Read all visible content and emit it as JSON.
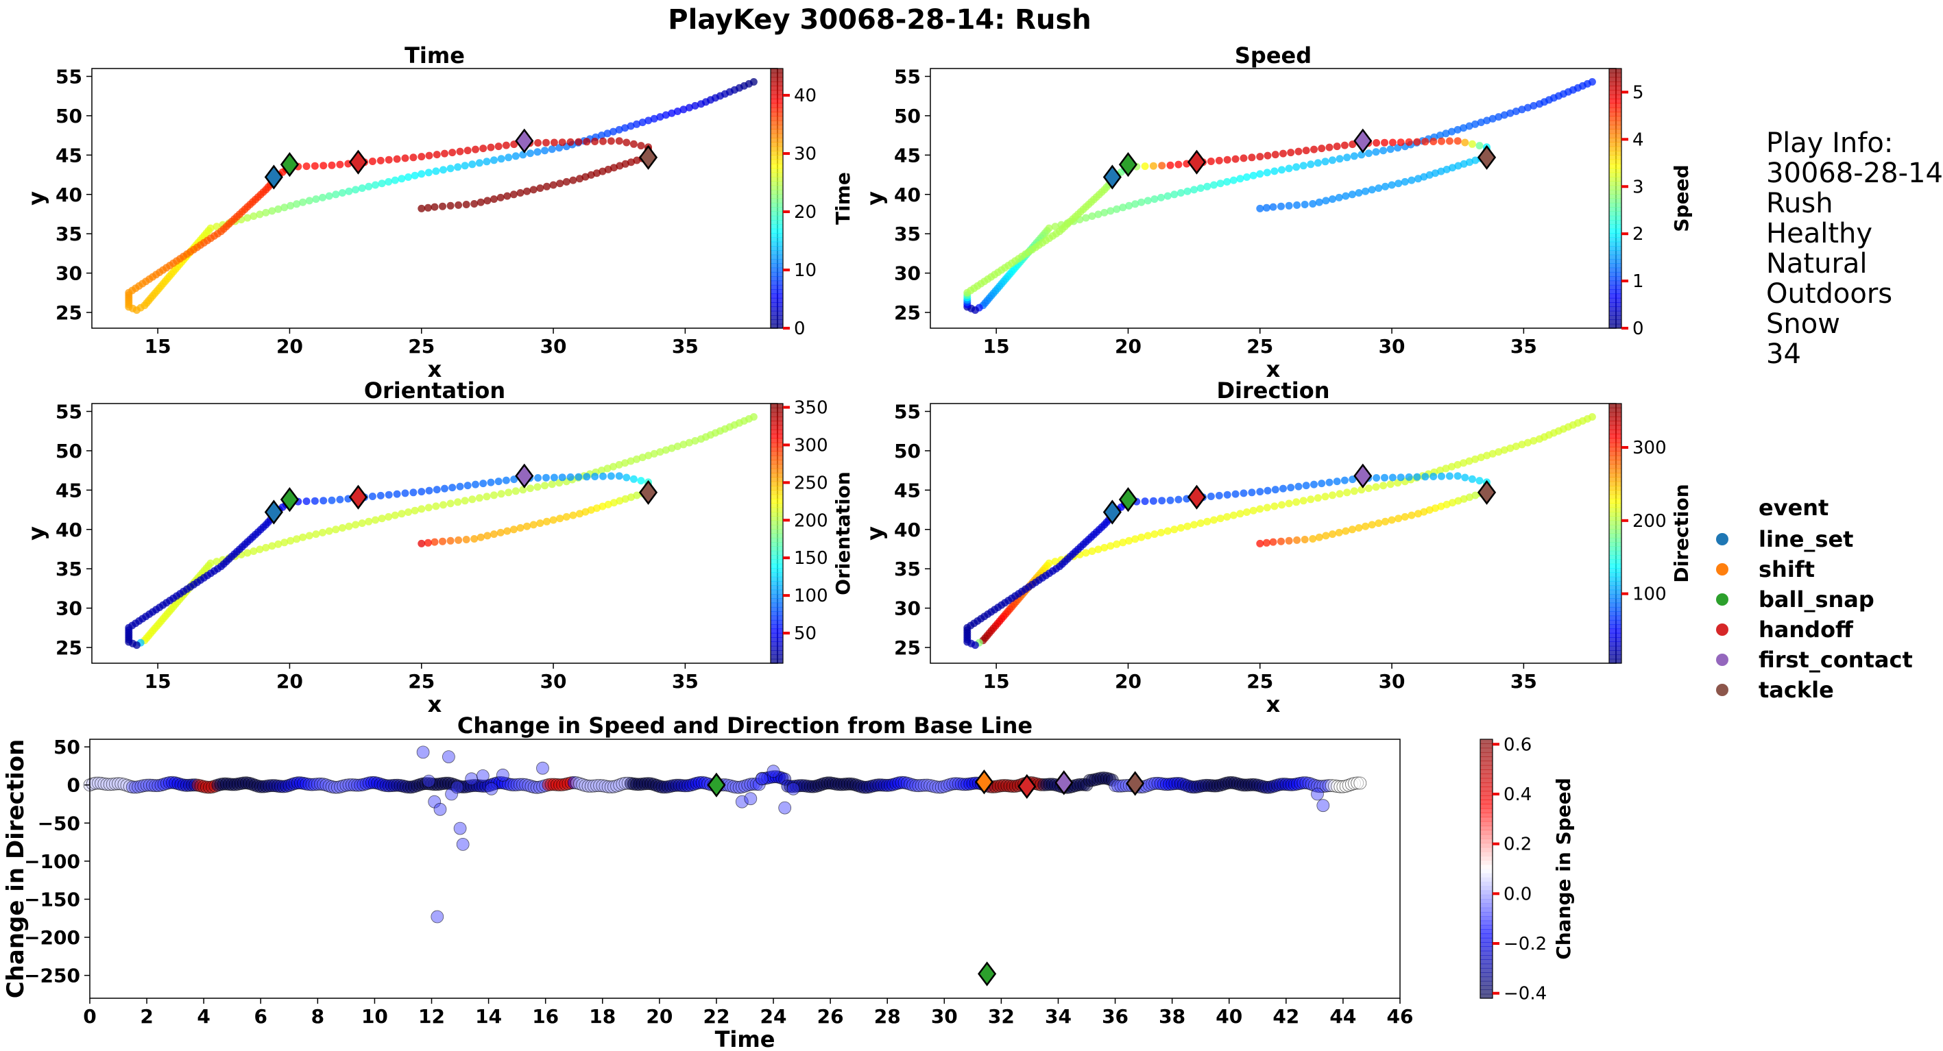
{
  "figure": {
    "title": "PlayKey 30068-28-14: Rush",
    "play_info": [
      "Play Info:",
      "30068-28-14",
      "Rush",
      "Healthy",
      "Natural",
      "Outdoors",
      "Snow",
      "34"
    ],
    "legend": {
      "title": "event",
      "items": [
        {
          "label": "line_set",
          "color": "#1f77b4"
        },
        {
          "label": "shift",
          "color": "#ff7f0e"
        },
        {
          "label": "ball_snap",
          "color": "#2ca02c"
        },
        {
          "label": "handoff",
          "color": "#d62728"
        },
        {
          "label": "first_contact",
          "color": "#9467bd"
        },
        {
          "label": "tackle",
          "color": "#8c564b"
        }
      ]
    }
  },
  "chart_data": [
    {
      "id": "time",
      "type": "scatter",
      "title": "Time",
      "xlabel": "x",
      "ylabel": "y",
      "xlim": [
        12.5,
        38.5
      ],
      "ylim": [
        23,
        56
      ],
      "xticks": [
        15,
        20,
        25,
        30,
        35
      ],
      "yticks": [
        25,
        30,
        35,
        40,
        45,
        50,
        55
      ],
      "colormap": "jet",
      "colorbar": {
        "label": "Time",
        "range": [
          0,
          44.6
        ],
        "ticks": [
          0,
          10,
          20,
          30,
          40
        ]
      },
      "value_field": "t",
      "grid": false
    },
    {
      "id": "speed",
      "type": "scatter",
      "title": "Speed",
      "xlabel": "x",
      "ylabel": "y",
      "xlim": [
        12.5,
        38.5
      ],
      "ylim": [
        23,
        56
      ],
      "xticks": [
        15,
        20,
        25,
        30,
        35
      ],
      "yticks": [
        25,
        30,
        35,
        40,
        45,
        50,
        55
      ],
      "colormap": "jet",
      "colorbar": {
        "label": "Speed",
        "range": [
          0,
          5.5
        ],
        "ticks": [
          0,
          1,
          2,
          3,
          4,
          5
        ]
      },
      "value_field": "s",
      "grid": false
    },
    {
      "id": "orientation",
      "type": "scatter",
      "title": "Orientation",
      "xlabel": "x",
      "ylabel": "y",
      "xlim": [
        12.5,
        38.5
      ],
      "ylim": [
        23,
        56
      ],
      "xticks": [
        15,
        20,
        25,
        30,
        35
      ],
      "yticks": [
        25,
        30,
        35,
        40,
        45,
        50,
        55
      ],
      "colormap": "jet",
      "colorbar": {
        "label": "Orientation",
        "range": [
          10,
          355
        ],
        "ticks": [
          50,
          100,
          150,
          200,
          250,
          300,
          350
        ]
      },
      "value_field": "o",
      "grid": false
    },
    {
      "id": "direction",
      "type": "scatter",
      "title": "Direction",
      "xlabel": "x",
      "ylabel": "y",
      "xlim": [
        12.5,
        38.5
      ],
      "ylim": [
        23,
        56
      ],
      "xticks": [
        15,
        20,
        25,
        30,
        35
      ],
      "yticks": [
        25,
        30,
        35,
        40,
        45,
        50,
        55
      ],
      "colormap": "jet",
      "colorbar": {
        "label": "Direction",
        "range": [
          5,
          360
        ],
        "ticks": [
          100,
          200,
          300
        ]
      },
      "value_field": "d",
      "grid": false
    },
    {
      "id": "change",
      "type": "scatter",
      "title": "Change in Speed and Direction from Base Line",
      "xlabel": "Time",
      "ylabel": "Change in Direction",
      "xlim": [
        0,
        46
      ],
      "ylim": [
        -280,
        60
      ],
      "xticks": [
        0,
        2,
        4,
        6,
        8,
        10,
        12,
        14,
        16,
        18,
        20,
        22,
        24,
        26,
        28,
        30,
        32,
        34,
        36,
        38,
        40,
        42,
        44,
        46
      ],
      "yticks": [
        -250,
        -200,
        -150,
        -100,
        -50,
        0,
        50
      ],
      "colormap": "seismic",
      "colorbar": {
        "label": "Change in Speed",
        "range": [
          -0.42,
          0.62
        ],
        "ticks": [
          -0.4,
          -0.2,
          0.0,
          0.2,
          0.4,
          0.6
        ]
      },
      "events": [
        {
          "event": "ball_snap",
          "t": 22.0,
          "dy": 0
        },
        {
          "event": "shift",
          "t": 31.4,
          "dy": 4
        },
        {
          "event": "ball_snap",
          "t": 31.5,
          "dy": -248
        },
        {
          "event": "handoff",
          "t": 32.9,
          "dy": -2
        },
        {
          "event": "first_contact",
          "t": 34.2,
          "dy": 3
        },
        {
          "event": "tackle",
          "t": 36.7,
          "dy": 2
        }
      ],
      "outliers": [
        {
          "t": 11.7,
          "dy": 43
        },
        {
          "t": 11.9,
          "dy": 5
        },
        {
          "t": 12.1,
          "dy": -22
        },
        {
          "t": 12.3,
          "dy": -32
        },
        {
          "t": 12.6,
          "dy": 37
        },
        {
          "t": 12.7,
          "dy": -12
        },
        {
          "t": 12.2,
          "dy": -173
        },
        {
          "t": 13.0,
          "dy": -57
        },
        {
          "t": 13.1,
          "dy": -78
        },
        {
          "t": 13.4,
          "dy": 8
        },
        {
          "t": 13.8,
          "dy": 12
        },
        {
          "t": 14.1,
          "dy": -5
        },
        {
          "t": 14.5,
          "dy": 13
        },
        {
          "t": 15.9,
          "dy": 22
        },
        {
          "t": 12.9,
          "dy": -3
        },
        {
          "t": 22.9,
          "dy": -22
        },
        {
          "t": 23.2,
          "dy": -18
        },
        {
          "t": 23.6,
          "dy": 8
        },
        {
          "t": 24.0,
          "dy": 18
        },
        {
          "t": 24.4,
          "dy": -30
        },
        {
          "t": 24.7,
          "dy": -5
        },
        {
          "t": 43.1,
          "dy": -12
        },
        {
          "t": 43.3,
          "dy": -27
        }
      ]
    }
  ],
  "trajectory": {
    "keypoints": [
      [
        0,
        37.6,
        54.3,
        0.9,
        200,
        210
      ],
      [
        4.3,
        35.6,
        51.5,
        1.0,
        200,
        212
      ],
      [
        10.5,
        30.5,
        46.1,
        1.4,
        205,
        212
      ],
      [
        16.2,
        25.0,
        42.6,
        2.0,
        210,
        220
      ],
      [
        22.0,
        20.5,
        39.0,
        2.6,
        210,
        225
      ],
      [
        26.5,
        17.0,
        35.7,
        3.0,
        210,
        225
      ],
      [
        30.8,
        14.5,
        25.9,
        1.3,
        220,
        350
      ],
      [
        31.4,
        14.2,
        25.3,
        0.3,
        20,
        25
      ],
      [
        31.6,
        13.9,
        25.7,
        0.2,
        20,
        20
      ],
      [
        32.4,
        13.9,
        27.5,
        3.0,
        25,
        15
      ],
      [
        35.5,
        17.4,
        35.3,
        3.0,
        28,
        25
      ],
      [
        37.3,
        19.1,
        40.6,
        3.0,
        35,
        35
      ],
      [
        38.1,
        19.6,
        42.5,
        2.8,
        40,
        40
      ],
      [
        38.5,
        20.0,
        43.5,
        2.5,
        50,
        55
      ],
      [
        39.1,
        21.6,
        43.7,
        4.8,
        80,
        75
      ],
      [
        40.0,
        25.0,
        44.8,
        5.0,
        80,
        80
      ],
      [
        40.8,
        28.8,
        46.5,
        5.0,
        95,
        95
      ],
      [
        42.2,
        32.5,
        46.8,
        4.5,
        110,
        115
      ],
      [
        43.0,
        33.6,
        46.0,
        2.0,
        150,
        130
      ],
      [
        43.4,
        33.6,
        44.8,
        1.8,
        200,
        200
      ],
      [
        44.0,
        31.0,
        42.0,
        1.6,
        240,
        240
      ],
      [
        44.3,
        27.0,
        38.8,
        1.4,
        255,
        250
      ],
      [
        44.5,
        25.5,
        38.4,
        1.3,
        290,
        300
      ],
      [
        44.6,
        25.0,
        38.2,
        1.3,
        320,
        310
      ]
    ],
    "events": [
      {
        "event": "line_set",
        "x": 19.4,
        "y": 42.2
      },
      {
        "event": "ball_snap",
        "x": 20.0,
        "y": 43.8
      },
      {
        "event": "handoff",
        "x": 22.6,
        "y": 44.1
      },
      {
        "event": "first_contact",
        "x": 28.9,
        "y": 46.8
      },
      {
        "event": "tackle",
        "x": 33.6,
        "y": 44.7
      }
    ]
  }
}
